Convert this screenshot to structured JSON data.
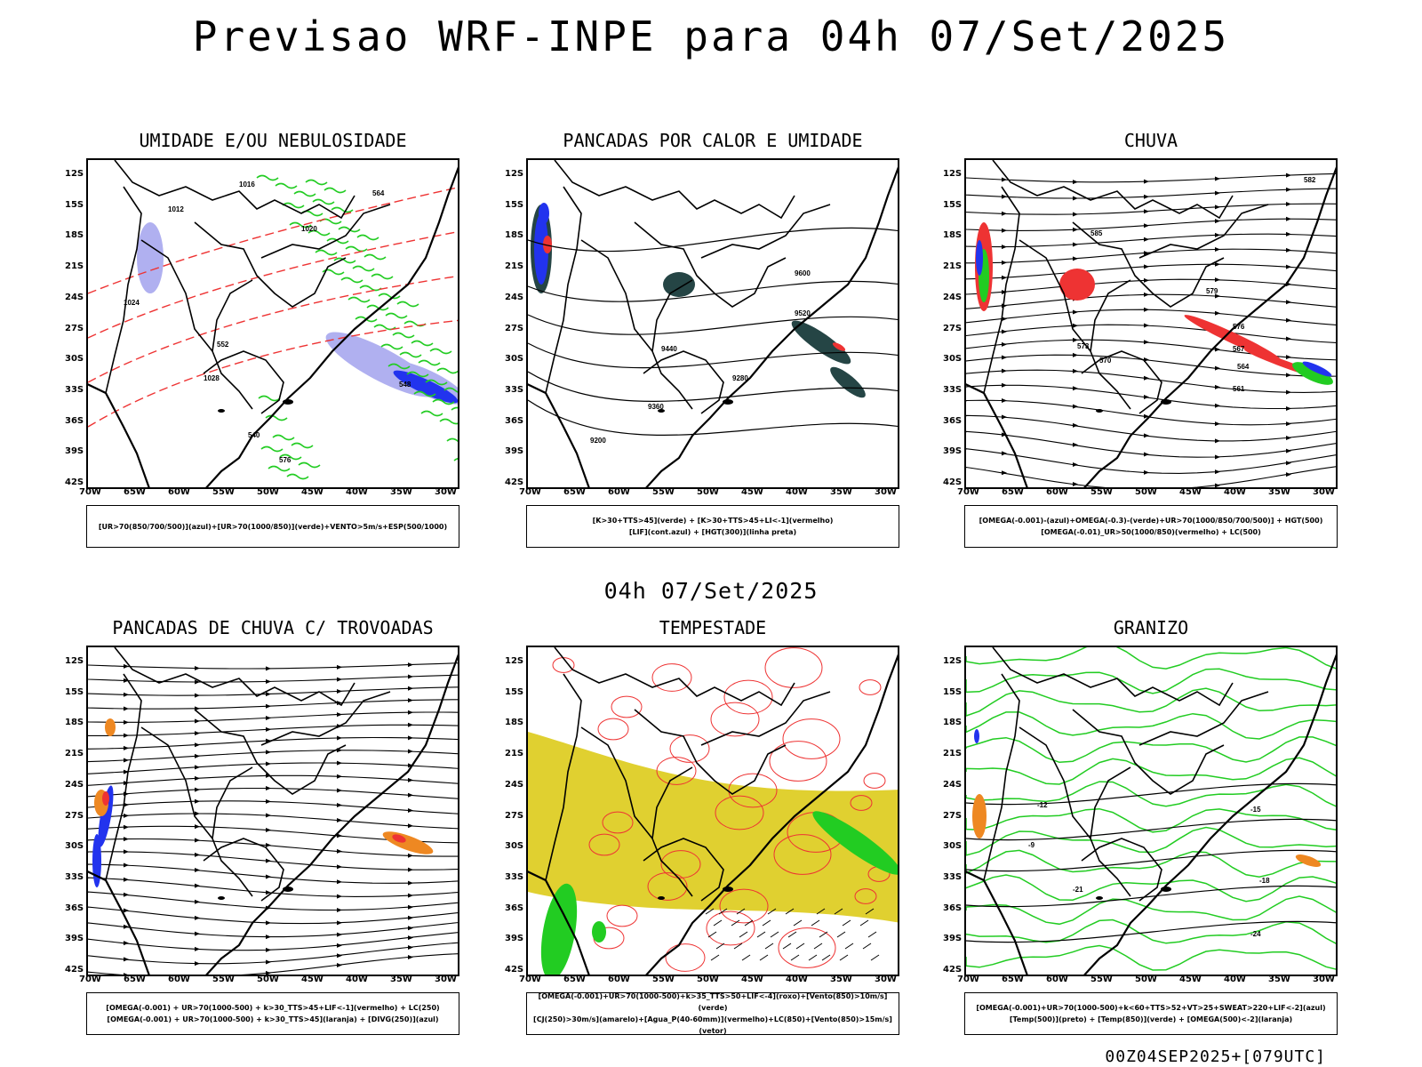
{
  "main_title": "Previsao WRF-INPE  para 04h 07/Set/2025",
  "mid_title": "04h 07/Set/2025",
  "footer": "00Z04SEP2025+[079UTC]",
  "lat_ticks": [
    "12S",
    "15S",
    "18S",
    "21S",
    "24S",
    "27S",
    "30S",
    "33S",
    "36S",
    "39S",
    "42S"
  ],
  "lon_ticks": [
    "70W",
    "65W",
    "60W",
    "55W",
    "50W",
    "45W",
    "40W",
    "35W",
    "30W"
  ],
  "colors": {
    "green": "#22cc22",
    "red": "#ee3333",
    "blue": "#2233ee",
    "lavender": "#b0b0f0",
    "yellow": "#e0d030",
    "orange": "#ee8822",
    "darkteal": "#254545"
  },
  "panels": [
    {
      "title": "UMIDADE E/OU NEBULOSIDADE",
      "legend": [
        "[UR>70(850/700/500)](azul)+[UR>70(1000/850)](verde)+VENTO>5m/s+ESP(500/1000)"
      ],
      "contour_labels": [
        "1012",
        "1016",
        "1020",
        "1024",
        "1028",
        "552",
        "564",
        "576",
        "540",
        "548"
      ]
    },
    {
      "title": "PANCADAS POR CALOR E UMIDADE",
      "legend": [
        "[K>30+TTS>45](verde) + [K>30+TTS>45+LI<-1](vermelho)",
        "[LIF](cont.azul) + [HGT(300)](linha preta)"
      ],
      "contour_labels": [
        "9600",
        "9520",
        "9440",
        "9360",
        "9280",
        "9200"
      ]
    },
    {
      "title": "CHUVA",
      "legend": [
        "[OMEGA(-0.001)-(azul)+OMEGA(-0.3)-(verde)+UR>70(1000/850/700/500)] + HGT(500)",
        "[OMEGA(-0.01)_UR>50(1000/850)(vermelho) + LC(500)"
      ],
      "contour_labels": [
        "585",
        "582",
        "579",
        "576",
        "573",
        "570",
        "567",
        "564",
        "561"
      ]
    },
    {
      "title": "PANCADAS DE CHUVA C/ TROVOADAS",
      "legend": [
        "[OMEGA(-0.001) + UR>70(1000-500) + k>30_TTS>45+LIF<-1](vermelho) + LC(250)",
        "[OMEGA(-0.001) + UR>70(1000-500) + k>30_TTS>45](laranja) + [DIVG(250)](azul)"
      ],
      "contour_labels": []
    },
    {
      "title": "TEMPESTADE",
      "legend": [
        "[OMEGA(-0.001)+UR>70(1000-500)+k>35_TTS>50+LIF<-4](roxo)+[Vento(850)>10m/s](verde)",
        "[CJ(250)>30m/s](amarelo)+[Agua_P(40-60mm)](vermelho)+LC(850)+[Vento(850)>15m/s](vetor)"
      ],
      "contour_labels": []
    },
    {
      "title": "GRANIZO",
      "legend": [
        "[OMEGA(-0.001)+UR>70(1000-500)+k<60+TTS>52+VT>25+SWEAT>220+LIF<-2](azul)",
        "[Temp(500)](preto) + [Temp(850)](verde) + [OMEGA(500)<-2](laranja)"
      ],
      "contour_labels": [
        "-12",
        "-15",
        "-18",
        "-21",
        "-24",
        "-9"
      ]
    }
  ]
}
